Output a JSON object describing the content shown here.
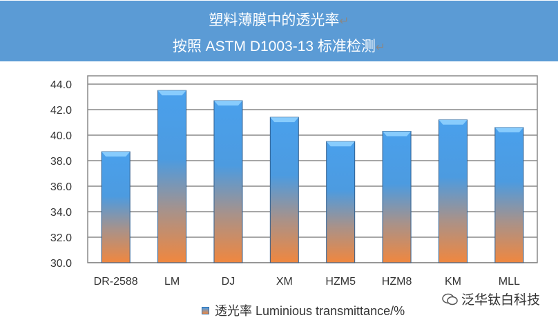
{
  "header": {
    "line1": "塑料薄膜中的透光率",
    "line2": "按照 ASTM D1003-13 标准检测",
    "return_mark": "↵",
    "background": "#5b9bd5"
  },
  "chart_data": {
    "type": "bar",
    "title": "塑料薄膜中的透光率 按照 ASTM D1003-13 标准检测",
    "categories": [
      "DR-2588",
      "LM",
      "DJ",
      "XM",
      "HZM5",
      "HZM8",
      "KM",
      "MLL"
    ],
    "series": [
      {
        "name": "透光率 Luminious transmittance/%",
        "values": [
          38.7,
          43.5,
          42.7,
          41.4,
          39.5,
          40.3,
          41.2,
          40.6
        ]
      }
    ],
    "ylim": [
      30,
      44
    ],
    "yticks": [
      "30.0",
      "32.0",
      "34.0",
      "36.0",
      "38.0",
      "40.0",
      "42.0",
      "44.0"
    ],
    "grid": true,
    "legend": "bottom",
    "colors": {
      "top": "#4aa0ec",
      "bottom": "#f0873f"
    }
  },
  "watermark": {
    "text": "泛华钛白科技",
    "icon": "wechat-icon"
  }
}
